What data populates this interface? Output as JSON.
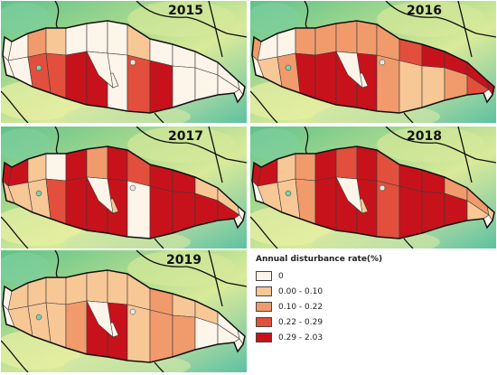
{
  "colors": {
    "class_0": "#fdf4ea",
    "class_1": "#f8c796",
    "class_2": "#f19a6c",
    "class_3": "#e24f3c",
    "class_4": "#c8121b"
  },
  "legend": {
    "title": "Annual disturbance rate(%)",
    "items": [
      {
        "label": "0",
        "class": 0
      },
      {
        "label": "0.00 - 0.10",
        "class": 1
      },
      {
        "label": "0.10 - 0.22",
        "class": 2
      },
      {
        "label": "0.22 - 0.29",
        "class": 3
      },
      {
        "label": "0.29 - 2.03",
        "class": 4
      }
    ]
  },
  "maps": [
    {
      "year": "2015",
      "classes": [
        0,
        2,
        1,
        0,
        0,
        0,
        1,
        0,
        0,
        0,
        0,
        0,
        3,
        3,
        4,
        4,
        0,
        3,
        4,
        0,
        0,
        0,
        0,
        0,
        0,
        0,
        0,
        0
      ]
    },
    {
      "year": "2016",
      "classes": [
        0,
        0,
        2,
        2,
        2,
        2,
        2,
        3,
        4,
        4,
        4,
        1,
        2,
        4,
        4,
        4,
        4,
        2,
        1,
        1,
        2,
        3,
        2,
        4,
        0,
        0,
        0,
        0
      ]
    },
    {
      "year": "2017",
      "classes": [
        4,
        1,
        0,
        4,
        2,
        4,
        3,
        4,
        4,
        1,
        1,
        1,
        1,
        3,
        4,
        4,
        4,
        0,
        4,
        4,
        4,
        4,
        4,
        0,
        1,
        0,
        1,
        0
      ]
    },
    {
      "year": "2018",
      "classes": [
        4,
        1,
        2,
        4,
        3,
        4,
        3,
        4,
        4,
        2,
        2,
        1,
        1,
        2,
        4,
        4,
        4,
        3,
        4,
        4,
        4,
        1,
        4,
        1,
        0,
        0,
        1,
        0
      ]
    },
    {
      "year": "2019",
      "classes": [
        1,
        1,
        1,
        1,
        1,
        1,
        1,
        2,
        1,
        1,
        0,
        1,
        1,
        1,
        2,
        4,
        4,
        1,
        2,
        2,
        0,
        0,
        0,
        0,
        0,
        0,
        0,
        0
      ]
    }
  ]
}
